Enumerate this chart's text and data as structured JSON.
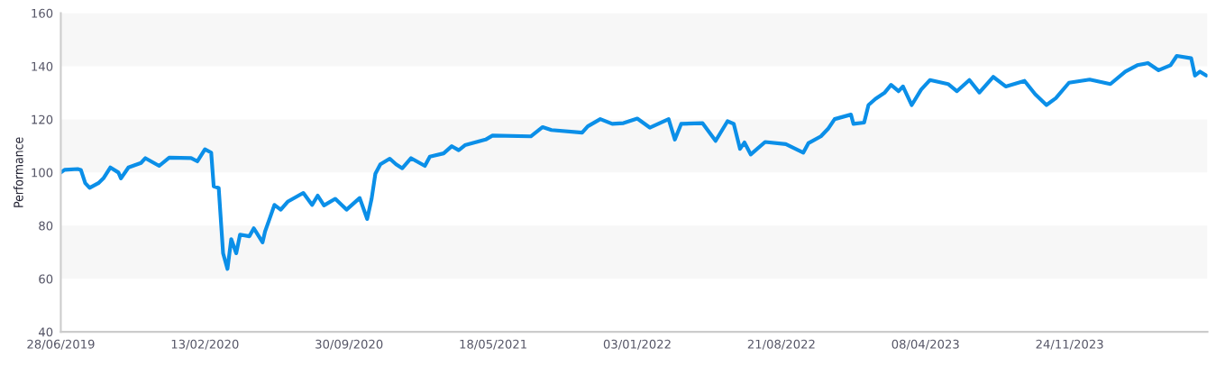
{
  "chart_data": {
    "type": "line",
    "ylabel": "Performance",
    "x": [
      "2019-06-28",
      "2019-07-04",
      "2019-07-25",
      "2019-07-30",
      "2019-08-06",
      "2019-08-13",
      "2019-08-27",
      "2019-09-04",
      "2019-09-15",
      "2019-09-28",
      "2019-10-02",
      "2019-10-14",
      "2019-11-03",
      "2019-11-10",
      "2019-12-02",
      "2019-12-18",
      "2020-01-22",
      "2020-02-01",
      "2020-02-13",
      "2020-02-23",
      "2020-02-27",
      "2020-03-06",
      "2020-03-13",
      "2020-03-20",
      "2020-03-26",
      "2020-04-03",
      "2020-04-09",
      "2020-04-24",
      "2020-05-01",
      "2020-05-15",
      "2020-05-19",
      "2020-05-27",
      "2020-06-03",
      "2020-06-13",
      "2020-06-24",
      "2020-07-19",
      "2020-08-02",
      "2020-08-11",
      "2020-08-21",
      "2020-09-08",
      "2020-09-26",
      "2020-10-17",
      "2020-10-29",
      "2020-11-05",
      "2020-11-11",
      "2020-11-19",
      "2020-12-04",
      "2020-12-14",
      "2020-12-24",
      "2021-01-07",
      "2021-01-29",
      "2021-02-06",
      "2021-02-28",
      "2021-03-13",
      "2021-03-24",
      "2021-04-03",
      "2021-05-06",
      "2021-05-17",
      "2021-07-17",
      "2021-08-05",
      "2021-08-19",
      "2021-10-07",
      "2021-10-16",
      "2021-11-05",
      "2021-11-24",
      "2021-12-12",
      "2022-01-03",
      "2022-01-23",
      "2022-02-22",
      "2022-03-04",
      "2022-03-14",
      "2022-04-17",
      "2022-05-08",
      "2022-05-27",
      "2022-06-06",
      "2022-06-16",
      "2022-06-23",
      "2022-07-03",
      "2022-07-26",
      "2022-08-28",
      "2022-09-25",
      "2022-10-03",
      "2022-10-23",
      "2022-11-04",
      "2022-11-14",
      "2022-12-10",
      "2022-12-14",
      "2022-12-31",
      "2023-01-07",
      "2023-01-18",
      "2023-02-02",
      "2023-02-12",
      "2023-02-24",
      "2023-03-03",
      "2023-03-17",
      "2023-04-01",
      "2023-04-15",
      "2023-05-14",
      "2023-05-28",
      "2023-06-17",
      "2023-07-03",
      "2023-07-25",
      "2023-08-14",
      "2023-09-13",
      "2023-09-30",
      "2023-10-18",
      "2023-11-02",
      "2023-11-23",
      "2023-12-26",
      "2024-01-28",
      "2024-02-21",
      "2024-03-11",
      "2024-03-28",
      "2024-04-14",
      "2024-05-03",
      "2024-05-13",
      "2024-06-05",
      "2024-06-11",
      "2024-06-19",
      "2024-06-29"
    ],
    "series": [
      {
        "color": "#0b8fe8",
        "values": [
          100,
          101,
          101.3,
          101,
          96,
          94.2,
          96,
          97.8,
          101.9,
          100,
          97.8,
          101.9,
          103.6,
          105.4,
          102.5,
          105.6,
          105.4,
          104.2,
          108.7,
          107.5,
          94.8,
          94.2,
          69.6,
          63.7,
          74.9,
          69.6,
          76.6,
          76,
          79,
          73.7,
          77.8,
          83.1,
          87.8,
          86,
          89,
          92.3,
          87.8,
          91.3,
          87.6,
          90.1,
          86,
          90.4,
          82.5,
          90.1,
          99.5,
          103.1,
          105.2,
          103.1,
          101.6,
          105.4,
          102.5,
          106,
          107.2,
          109.9,
          108.4,
          110.3,
          112.4,
          113.9,
          113.6,
          117.1,
          116,
          115,
          117.4,
          120.1,
          118.3,
          118.6,
          120.3,
          116.9,
          120.1,
          112.4,
          118.3,
          118.6,
          111.9,
          119.3,
          118.3,
          108.9,
          111.3,
          106.8,
          111.5,
          110.7,
          107.5,
          111,
          113.6,
          116.6,
          120.1,
          121.8,
          118.3,
          118.8,
          125.4,
          127.7,
          130.1,
          133,
          130.6,
          132.4,
          125.4,
          131.2,
          134.8,
          133.3,
          130.6,
          134.8,
          130.1,
          136,
          132.4,
          134.5,
          129.5,
          125.4,
          128,
          133.8,
          135,
          133.3,
          138,
          140.4,
          141.2,
          138.5,
          140.4,
          143.9,
          143,
          136.5,
          138,
          136.5
        ]
      }
    ],
    "xlim": [
      "2019-06-28",
      "2024-07-01"
    ],
    "xticks": [
      {
        "value": "2019-06-28",
        "label": "28/06/2019"
      },
      {
        "value": "2020-02-13",
        "label": "13/02/2020"
      },
      {
        "value": "2020-09-30",
        "label": "30/09/2020"
      },
      {
        "value": "2021-05-18",
        "label": "18/05/2021"
      },
      {
        "value": "2022-01-03",
        "label": "03/01/2022"
      },
      {
        "value": "2022-08-21",
        "label": "21/08/2022"
      },
      {
        "value": "2023-04-08",
        "label": "08/04/2023"
      },
      {
        "value": "2023-11-24",
        "label": "24/11/2023"
      }
    ],
    "ylim": [
      40,
      160
    ],
    "yticks": [
      40,
      60,
      80,
      100,
      120,
      140,
      160
    ],
    "bands": [
      {
        "axis": "y",
        "from": 60,
        "to": 80,
        "color": "#f7f7f7"
      },
      {
        "axis": "y",
        "from": 100,
        "to": 120,
        "color": "#f7f7f7"
      },
      {
        "axis": "y",
        "from": 140,
        "to": 160,
        "color": "#f7f7f7"
      }
    ]
  }
}
